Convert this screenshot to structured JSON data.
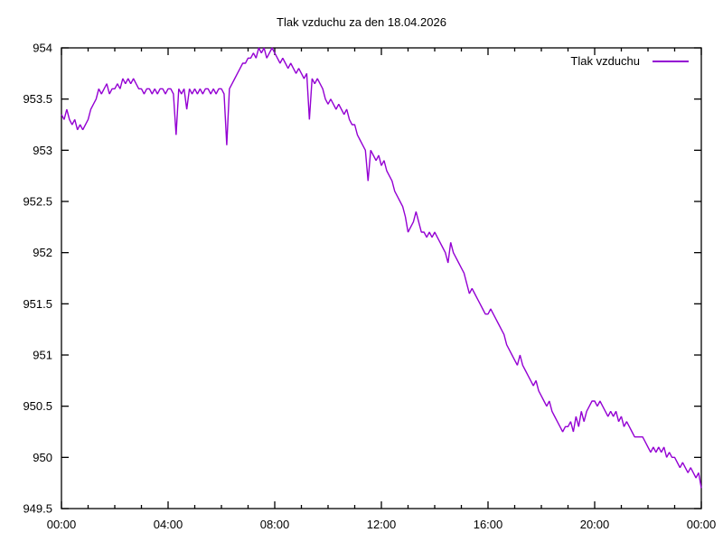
{
  "title": "Tlak vzduchu za den 18.04.2026",
  "legend": {
    "label": "Tlak vzduchu"
  },
  "chart_data": {
    "type": "line",
    "title": "Tlak vzduchu za den 18.04.2026",
    "xlabel": "",
    "ylabel": "",
    "xlim_hours": [
      0,
      24
    ],
    "ylim": [
      949.5,
      954
    ],
    "grid": false,
    "legend_position": "top-right-inside",
    "x_major_tick_hours": 4,
    "x_minor_tick_hours": 1,
    "x_tick_labels": [
      "00:00",
      "04:00",
      "08:00",
      "12:00",
      "16:00",
      "20:00",
      "00:00"
    ],
    "y_tick_values": [
      949.5,
      950,
      950.5,
      951,
      951.5,
      952,
      952.5,
      953,
      953.5,
      954
    ],
    "y_tick_labels": [
      "949.5",
      "950",
      "950.5",
      "951",
      "951.5",
      "952",
      "952.5",
      "953",
      "953.5",
      "954"
    ],
    "colors": {
      "line": "#9400d3",
      "axis": "#000000",
      "text": "#000000",
      "background": "#ffffff"
    },
    "series": [
      {
        "name": "Tlak vzduchu",
        "color": "#9400d3",
        "start_hour": 0,
        "interval_hours": 0.1,
        "values": [
          953.35,
          953.3,
          953.4,
          953.3,
          953.25,
          953.3,
          953.2,
          953.25,
          953.2,
          953.25,
          953.3,
          953.4,
          953.45,
          953.5,
          953.6,
          953.55,
          953.6,
          953.65,
          953.55,
          953.6,
          953.6,
          953.65,
          953.6,
          953.7,
          953.65,
          953.7,
          953.65,
          953.7,
          953.65,
          953.6,
          953.6,
          953.55,
          953.6,
          953.6,
          953.55,
          953.6,
          953.55,
          953.6,
          953.6,
          953.55,
          953.6,
          953.6,
          953.55,
          953.15,
          953.6,
          953.55,
          953.6,
          953.4,
          953.6,
          953.55,
          953.6,
          953.55,
          953.6,
          953.55,
          953.6,
          953.6,
          953.55,
          953.6,
          953.55,
          953.6,
          953.6,
          953.55,
          953.05,
          953.6,
          953.65,
          953.7,
          953.75,
          953.8,
          953.85,
          953.85,
          953.9,
          953.9,
          953.95,
          953.9,
          954,
          953.95,
          954,
          953.9,
          953.95,
          954,
          953.95,
          953.9,
          953.85,
          953.9,
          953.85,
          953.8,
          953.85,
          953.8,
          953.75,
          953.8,
          953.75,
          953.7,
          953.75,
          953.3,
          953.7,
          953.65,
          953.7,
          953.65,
          953.6,
          953.5,
          953.45,
          953.5,
          953.45,
          953.4,
          953.45,
          953.4,
          953.35,
          953.4,
          953.3,
          953.25,
          953.25,
          953.15,
          953.1,
          953.05,
          953,
          952.7,
          953,
          952.95,
          952.9,
          952.95,
          952.85,
          952.9,
          952.8,
          952.75,
          952.7,
          952.6,
          952.55,
          952.5,
          952.45,
          952.35,
          952.2,
          952.25,
          952.3,
          952.4,
          952.3,
          952.2,
          952.2,
          952.15,
          952.2,
          952.15,
          952.2,
          952.15,
          952.1,
          952.05,
          952,
          951.9,
          952.1,
          952,
          951.95,
          951.9,
          951.85,
          951.8,
          951.7,
          951.6,
          951.65,
          951.6,
          951.55,
          951.5,
          951.45,
          951.4,
          951.4,
          951.45,
          951.4,
          951.35,
          951.3,
          951.25,
          951.2,
          951.1,
          951.05,
          951,
          950.95,
          950.9,
          951,
          950.9,
          950.85,
          950.8,
          950.75,
          950.7,
          950.75,
          950.65,
          950.6,
          950.55,
          950.5,
          950.55,
          950.45,
          950.4,
          950.35,
          950.3,
          950.25,
          950.3,
          950.3,
          950.35,
          950.25,
          950.4,
          950.3,
          950.45,
          950.35,
          950.45,
          950.5,
          950.55,
          950.55,
          950.5,
          950.55,
          950.5,
          950.45,
          950.4,
          950.45,
          950.4,
          950.45,
          950.35,
          950.4,
          950.3,
          950.35,
          950.3,
          950.25,
          950.2,
          950.2,
          950.2,
          950.2,
          950.15,
          950.1,
          950.05,
          950.1,
          950.05,
          950.1,
          950.05,
          950.1,
          950,
          950.05,
          950,
          950,
          949.95,
          949.9,
          949.95,
          949.9,
          949.85,
          949.9,
          949.85,
          949.8,
          949.85,
          949.7
        ]
      }
    ]
  }
}
